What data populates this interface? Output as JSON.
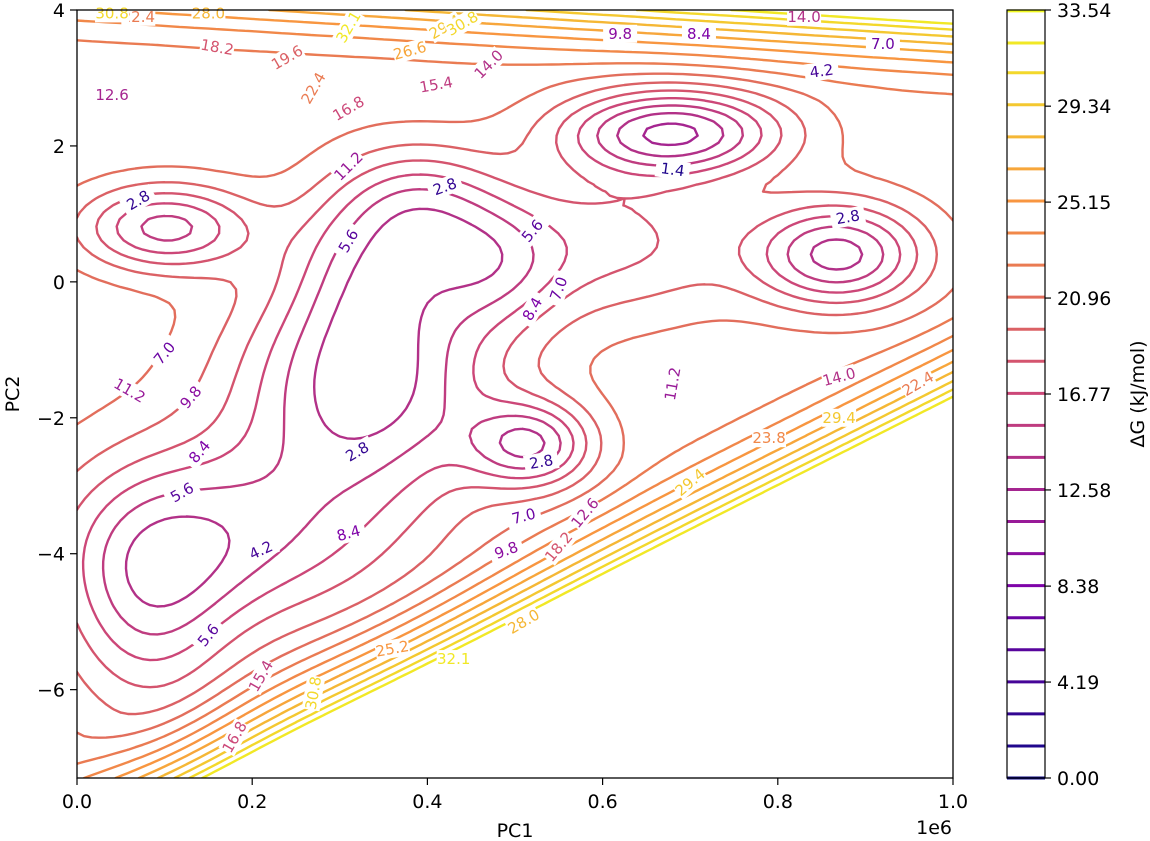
{
  "chart_data": {
    "type": "contour",
    "xlabel": "PC1",
    "ylabel": "PC2",
    "x_scale_label": "1e6",
    "xlim": [
      0.0,
      1.0
    ],
    "ylim": [
      -7.3,
      4.0
    ],
    "x_ticks": [
      "0.0",
      "0.2",
      "0.4",
      "0.6",
      "0.8",
      "1.0"
    ],
    "y_ticks": [
      "4",
      "2",
      "0",
      "−2",
      "−4",
      "−6"
    ],
    "colormap": "plasma",
    "colorbar": {
      "label": "ΔG (kJ/mol)",
      "min": 0.0,
      "max": 33.54,
      "tick_labels": [
        "33.54",
        "29.34",
        "25.15",
        "20.96",
        "16.77",
        "12.58",
        "8.38",
        "4.19",
        "0.00"
      ],
      "levels": [
        0.0,
        1.4,
        2.8,
        4.2,
        5.6,
        7.0,
        8.4,
        9.8,
        11.2,
        12.6,
        14.0,
        15.4,
        16.8,
        18.2,
        19.6,
        21.0,
        22.4,
        23.8,
        25.2,
        26.6,
        28.0,
        29.4,
        30.8,
        32.1,
        33.5
      ]
    },
    "contour_labels": [
      {
        "text": "1.4",
        "x": 0.68,
        "y": 1.65,
        "rot": 8
      },
      {
        "text": "2.8",
        "x": 0.07,
        "y": 1.2,
        "rot": -30
      },
      {
        "text": "2.8",
        "x": 0.42,
        "y": 1.4,
        "rot": -20
      },
      {
        "text": "2.8",
        "x": 0.88,
        "y": 0.95,
        "rot": -10
      },
      {
        "text": "2.8",
        "x": 0.32,
        "y": -2.5,
        "rot": -30
      },
      {
        "text": "2.8",
        "x": 0.53,
        "y": -2.65,
        "rot": -10
      },
      {
        "text": "4.2",
        "x": 0.85,
        "y": 3.1,
        "rot": -8
      },
      {
        "text": "4.2",
        "x": 0.21,
        "y": -3.95,
        "rot": -25
      },
      {
        "text": "5.6",
        "x": 0.52,
        "y": 0.75,
        "rot": -50
      },
      {
        "text": "5.6",
        "x": 0.31,
        "y": 0.6,
        "rot": -60
      },
      {
        "text": "5.6",
        "x": 0.12,
        "y": -3.1,
        "rot": -30
      },
      {
        "text": "5.6",
        "x": 0.15,
        "y": -5.2,
        "rot": -50
      },
      {
        "text": "7.0",
        "x": 0.92,
        "y": 3.5,
        "rot": 0
      },
      {
        "text": "7.0",
        "x": 0.1,
        "y": -1.05,
        "rot": -50
      },
      {
        "text": "7.0",
        "x": 0.55,
        "y": -0.1,
        "rot": -70
      },
      {
        "text": "7.0",
        "x": 0.51,
        "y": -3.45,
        "rot": -15
      },
      {
        "text": "8.4",
        "x": 0.71,
        "y": 3.65,
        "rot": 0
      },
      {
        "text": "8.4",
        "x": 0.52,
        "y": -0.4,
        "rot": -60
      },
      {
        "text": "8.4",
        "x": 0.14,
        "y": -2.5,
        "rot": -50
      },
      {
        "text": "8.4",
        "x": 0.31,
        "y": -3.7,
        "rot": -15
      },
      {
        "text": "9.8",
        "x": 0.62,
        "y": 3.65,
        "rot": 0
      },
      {
        "text": "9.8",
        "x": 0.13,
        "y": -1.7,
        "rot": -50
      },
      {
        "text": "9.8",
        "x": 0.49,
        "y": -3.95,
        "rot": -20
      },
      {
        "text": "11.2",
        "x": 0.06,
        "y": -1.6,
        "rot": 30
      },
      {
        "text": "11.2",
        "x": 0.31,
        "y": 1.7,
        "rot": -45
      },
      {
        "text": "11.2",
        "x": 0.68,
        "y": -1.5,
        "rot": -80
      },
      {
        "text": "12.6",
        "x": 0.04,
        "y": 2.75,
        "rot": 0
      },
      {
        "text": "12.6",
        "x": 0.58,
        "y": -3.4,
        "rot": -50
      },
      {
        "text": "14.0",
        "x": 0.87,
        "y": -1.4,
        "rot": -15
      },
      {
        "text": "14.0",
        "x": 0.47,
        "y": 3.2,
        "rot": -45
      },
      {
        "text": "14.0",
        "x": 0.83,
        "y": 3.9,
        "rot": 0
      },
      {
        "text": "15.4",
        "x": 0.41,
        "y": 2.9,
        "rot": -10
      },
      {
        "text": "15.4",
        "x": 0.21,
        "y": -5.8,
        "rot": -60
      },
      {
        "text": "16.8",
        "x": 0.31,
        "y": 2.55,
        "rot": -30
      },
      {
        "text": "16.8",
        "x": 0.18,
        "y": -6.7,
        "rot": -60
      },
      {
        "text": "18.2",
        "x": 0.16,
        "y": 3.45,
        "rot": 10
      },
      {
        "text": "18.2",
        "x": 0.55,
        "y": -3.9,
        "rot": -50
      },
      {
        "text": "19.6",
        "x": 0.24,
        "y": 3.3,
        "rot": -30
      },
      {
        "text": "22.4",
        "x": 0.27,
        "y": 2.85,
        "rot": -60
      },
      {
        "text": "22.4",
        "x": 0.96,
        "y": -1.5,
        "rot": -30
      },
      {
        "text": "22.4",
        "x": 0.07,
        "y": 3.9,
        "rot": 0
      },
      {
        "text": "23.8",
        "x": 0.79,
        "y": -2.3,
        "rot": 0
      },
      {
        "text": "25.2",
        "x": 0.36,
        "y": -5.4,
        "rot": -10
      },
      {
        "text": "26.6",
        "x": 0.38,
        "y": 3.4,
        "rot": -15
      },
      {
        "text": "28.0",
        "x": 0.51,
        "y": -5.0,
        "rot": -30
      },
      {
        "text": "28.0",
        "x": 0.15,
        "y": 3.95,
        "rot": 0
      },
      {
        "text": "29.4",
        "x": 0.7,
        "y": -2.95,
        "rot": -40
      },
      {
        "text": "29.4",
        "x": 0.42,
        "y": 3.75,
        "rot": -30
      },
      {
        "text": "29.4",
        "x": 0.87,
        "y": -2.0,
        "rot": 0
      },
      {
        "text": "30.8",
        "x": 0.27,
        "y": -6.05,
        "rot": -80
      },
      {
        "text": "30.8",
        "x": 0.44,
        "y": 3.8,
        "rot": -30
      },
      {
        "text": "30.8",
        "x": 0.04,
        "y": 3.95,
        "rot": 0
      },
      {
        "text": "32.1",
        "x": 0.31,
        "y": 3.75,
        "rot": -60
      },
      {
        "text": "32.1",
        "x": 0.43,
        "y": -5.55,
        "rot": 0
      }
    ]
  }
}
